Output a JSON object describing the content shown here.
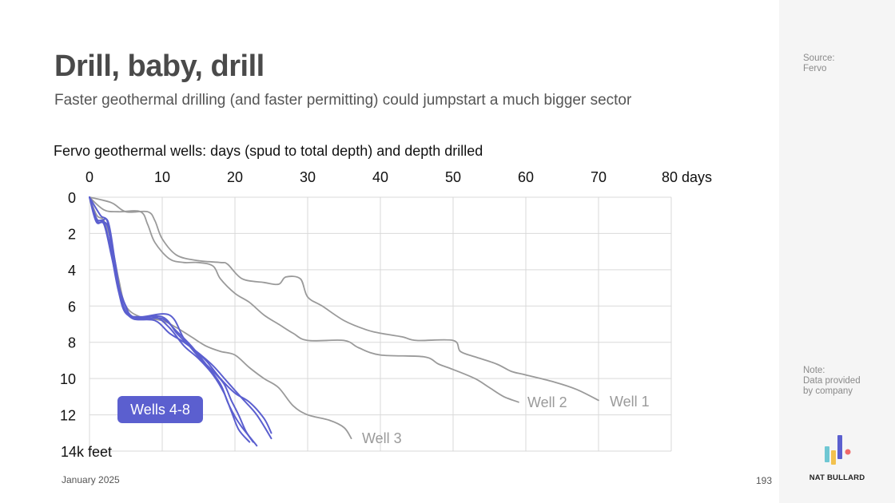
{
  "title": "Drill, baby, drill",
  "subtitle": "Faster geothermal drilling (and faster permitting) could jumpstart a much bigger sector",
  "footer": {
    "date": "January 2025",
    "page": "193"
  },
  "sidebar": {
    "source": "Source:\nFervo",
    "note": "Note:\nData provided\nby company",
    "brand": "NAT BULLARD",
    "brand_colors": [
      "#6fc7d3",
      "#f2c14e",
      "#5b5fcf",
      "#f06a6a"
    ]
  },
  "colors": {
    "wells_4_8": "#5b5fcf",
    "wells_1_3": "#9a9a9a",
    "grid": "#d9d9d9"
  },
  "chart_data": {
    "type": "line",
    "title": "Fervo geothermal wells: days (spud to total depth) and depth drilled",
    "x_axis": {
      "position": "top",
      "range": [
        0,
        80
      ],
      "ticks": [
        0,
        10,
        20,
        30,
        40,
        50,
        60,
        70,
        80
      ],
      "tick_labels": [
        "0",
        "10",
        "20",
        "30",
        "40",
        "50",
        "60",
        "70",
        "80 days"
      ]
    },
    "y_axis": {
      "inverted": true,
      "range": [
        0,
        14
      ],
      "ticks": [
        0,
        2,
        4,
        6,
        8,
        10,
        12,
        14
      ],
      "tick_labels": [
        "0",
        "2",
        "4",
        "6",
        "8",
        "10",
        "12",
        "14k feet"
      ]
    },
    "grid": true,
    "labels": {
      "well_1": "Well 1",
      "well_2": "Well 2",
      "well_3": "Well 3",
      "wells_4_8": "Wells 4-8"
    },
    "series": [
      {
        "name": "Well 1",
        "group": "wells_1_3",
        "points": [
          [
            0,
            0
          ],
          [
            3,
            0.3
          ],
          [
            5,
            0.8
          ],
          [
            8,
            0.8
          ],
          [
            9,
            1.3
          ],
          [
            10,
            2.3
          ],
          [
            12,
            3.2
          ],
          [
            15,
            3.5
          ],
          [
            18,
            3.6
          ],
          [
            19,
            3.7
          ],
          [
            21,
            4.5
          ],
          [
            24,
            4.7
          ],
          [
            26,
            4.8
          ],
          [
            27,
            4.4
          ],
          [
            29,
            4.5
          ],
          [
            30,
            5.5
          ],
          [
            32,
            6.0
          ],
          [
            35,
            6.8
          ],
          [
            38,
            7.3
          ],
          [
            40,
            7.5
          ],
          [
            43,
            7.7
          ],
          [
            45,
            7.9
          ],
          [
            50,
            7.9
          ],
          [
            51,
            8.5
          ],
          [
            53,
            8.8
          ],
          [
            56,
            9.2
          ],
          [
            58,
            9.6
          ],
          [
            60,
            9.8
          ],
          [
            64,
            10.2
          ],
          [
            67,
            10.6
          ],
          [
            70,
            11.2
          ]
        ]
      },
      {
        "name": "Well 2",
        "group": "wells_1_3",
        "points": [
          [
            0,
            0
          ],
          [
            2,
            0.7
          ],
          [
            4,
            0.8
          ],
          [
            7,
            0.8
          ],
          [
            8,
            1.5
          ],
          [
            9,
            2.5
          ],
          [
            11,
            3.4
          ],
          [
            13,
            3.6
          ],
          [
            15,
            3.6
          ],
          [
            17,
            3.8
          ],
          [
            18,
            4.5
          ],
          [
            20,
            5.3
          ],
          [
            22,
            5.8
          ],
          [
            24,
            6.5
          ],
          [
            26,
            7.0
          ],
          [
            28,
            7.5
          ],
          [
            30,
            7.9
          ],
          [
            35,
            7.9
          ],
          [
            37,
            8.3
          ],
          [
            40,
            8.7
          ],
          [
            46,
            8.8
          ],
          [
            48,
            9.2
          ],
          [
            50,
            9.5
          ],
          [
            53,
            10.0
          ],
          [
            55,
            10.5
          ],
          [
            57,
            11.0
          ],
          [
            59,
            11.3
          ]
        ]
      },
      {
        "name": "Well 3",
        "group": "wells_1_3",
        "points": [
          [
            0,
            0
          ],
          [
            1,
            1.0
          ],
          [
            2,
            1.3
          ],
          [
            3,
            2.5
          ],
          [
            4,
            4.5
          ],
          [
            5,
            6.0
          ],
          [
            7,
            6.6
          ],
          [
            10,
            6.8
          ],
          [
            12,
            7.2
          ],
          [
            14,
            7.7
          ],
          [
            16,
            8.2
          ],
          [
            18,
            8.5
          ],
          [
            20,
            8.7
          ],
          [
            22,
            9.4
          ],
          [
            24,
            10.0
          ],
          [
            26,
            10.5
          ],
          [
            28,
            11.5
          ],
          [
            30,
            12.0
          ],
          [
            33,
            12.3
          ],
          [
            35,
            12.7
          ],
          [
            36,
            13.3
          ]
        ]
      },
      {
        "name": "Well 4",
        "group": "wells_4_8",
        "points": [
          [
            0,
            0
          ],
          [
            1,
            1.3
          ],
          [
            2,
            1.5
          ],
          [
            3,
            3.2
          ],
          [
            4,
            5.0
          ],
          [
            5,
            6.0
          ],
          [
            6,
            6.7
          ],
          [
            9,
            6.8
          ],
          [
            11,
            7.5
          ],
          [
            13,
            8.0
          ],
          [
            15,
            8.6
          ],
          [
            17,
            9.3
          ],
          [
            19,
            10.2
          ],
          [
            21,
            11.1
          ],
          [
            23,
            12.0
          ],
          [
            25,
            13.3
          ]
        ]
      },
      {
        "name": "Well 5",
        "group": "wells_4_8",
        "points": [
          [
            0,
            0
          ],
          [
            1,
            1.2
          ],
          [
            2,
            1.4
          ],
          [
            3,
            3.0
          ],
          [
            4,
            4.8
          ],
          [
            5,
            6.3
          ],
          [
            7,
            6.7
          ],
          [
            10,
            6.7
          ],
          [
            12,
            7.4
          ],
          [
            14,
            8.2
          ],
          [
            16,
            9.2
          ],
          [
            18,
            10.3
          ],
          [
            19,
            11.3
          ],
          [
            20,
            12.1
          ],
          [
            21,
            12.7
          ],
          [
            23,
            13.7
          ]
        ]
      },
      {
        "name": "Well 6",
        "group": "wells_4_8",
        "points": [
          [
            0,
            0
          ],
          [
            1,
            1.4
          ],
          [
            2.5,
            1.3
          ],
          [
            3.5,
            3.5
          ],
          [
            4.5,
            5.8
          ],
          [
            6,
            6.7
          ],
          [
            9,
            6.6
          ],
          [
            11,
            7.2
          ],
          [
            13,
            8.2
          ],
          [
            15,
            8.9
          ],
          [
            17,
            9.8
          ],
          [
            18.5,
            10.8
          ],
          [
            19.5,
            11.8
          ],
          [
            20.5,
            12.8
          ],
          [
            22,
            13.5
          ]
        ]
      },
      {
        "name": "Well 7",
        "group": "wells_4_8",
        "points": [
          [
            0,
            0
          ],
          [
            1,
            1.3
          ],
          [
            2.5,
            1.6
          ],
          [
            3.5,
            4.0
          ],
          [
            4.5,
            5.5
          ],
          [
            6,
            6.6
          ],
          [
            10,
            6.6
          ],
          [
            12,
            7.5
          ],
          [
            14,
            8.3
          ],
          [
            16,
            9.0
          ],
          [
            18,
            10.0
          ],
          [
            20,
            10.8
          ],
          [
            22,
            11.3
          ],
          [
            24,
            12.2
          ],
          [
            25,
            13.0
          ]
        ]
      },
      {
        "name": "Well 8",
        "group": "wells_4_8",
        "points": [
          [
            0,
            0
          ],
          [
            1.5,
            1.0
          ],
          [
            2.5,
            1.4
          ],
          [
            3.2,
            3.5
          ],
          [
            4,
            5.2
          ],
          [
            5,
            6.4
          ],
          [
            7,
            6.6
          ],
          [
            11,
            6.5
          ],
          [
            13,
            7.8
          ],
          [
            15,
            8.8
          ],
          [
            17,
            9.6
          ],
          [
            18.5,
            10.3
          ],
          [
            19.5,
            11.2
          ],
          [
            20.5,
            12.0
          ],
          [
            21.5,
            12.9
          ],
          [
            22.5,
            13.5
          ]
        ]
      }
    ]
  }
}
